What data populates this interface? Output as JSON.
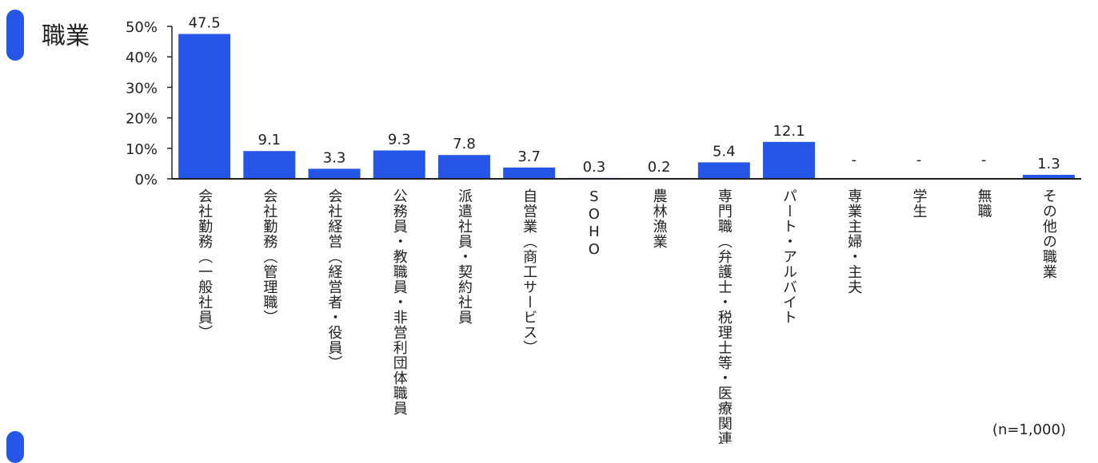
{
  "section": {
    "title": "職業"
  },
  "note": "(n=1,000)",
  "colors": {
    "bar": "#2656e8",
    "axis": "#222222",
    "text": "#222222"
  },
  "chart_data": {
    "type": "bar",
    "categories": [
      "会社勤務（一般社員）",
      "会社勤務（管理職）",
      "会社経営（経営者・役員）",
      "公務員・教職員・非営利団体職員",
      "派遣社員・契約社員",
      "自営業（商工サービス）",
      "SOHO",
      "農林漁業",
      "専門職（弁護士・税理士等・医療関連）",
      "パート・アルバイト",
      "専業主婦・主夫",
      "学生",
      "無職",
      "その他の職業"
    ],
    "values": [
      47.5,
      9.1,
      3.3,
      9.3,
      7.8,
      3.7,
      0.3,
      0.2,
      5.4,
      12.1,
      null,
      null,
      null,
      1.3
    ],
    "data_labels": [
      "47.5",
      "9.1",
      "3.3",
      "9.3",
      "7.8",
      "3.7",
      "0.3",
      "0.2",
      "5.4",
      "12.1",
      "-",
      "-",
      "-",
      "1.3"
    ],
    "y_ticks": [
      "0%",
      "10%",
      "20%",
      "30%",
      "40%",
      "50%"
    ],
    "ylim": [
      0,
      50
    ],
    "unit": "%"
  }
}
